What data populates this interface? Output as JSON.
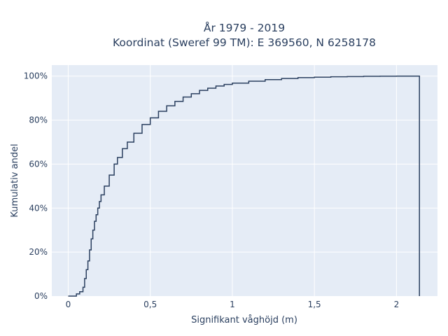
{
  "chart_data": {
    "type": "line",
    "line_shape": "step",
    "title": "År 1979 - 2019",
    "subtitle": "Koordinat (Sweref 99 TM): E 369560, N 6258178",
    "xlabel": "Signifikant våghöjd (m)",
    "ylabel": "Kumulativ andel",
    "xlim": [
      -0.1,
      2.25
    ],
    "ylim": [
      0,
      1.05
    ],
    "x_ticks": [
      0,
      0.5,
      1,
      1.5,
      2
    ],
    "x_tick_labels": [
      "0",
      "0,5",
      "1",
      "1,5",
      "2"
    ],
    "y_ticks": [
      0,
      0.2,
      0.4,
      0.6,
      0.8,
      1.0
    ],
    "y_tick_labels": [
      "0%",
      "20%",
      "40%",
      "60%",
      "80%",
      "100%"
    ],
    "grid": true,
    "legend": "none",
    "colors": {
      "line": "#2a3f5f",
      "plot_bg": "#e5ecf6",
      "grid": "#ffffff",
      "text": "#2a3f5f"
    },
    "series": [
      {
        "x": [
          0,
          0.05,
          0.07,
          0.09,
          0.1,
          0.11,
          0.12,
          0.13,
          0.14,
          0.15,
          0.16,
          0.17,
          0.18,
          0.19,
          0.2,
          0.22,
          0.25,
          0.28,
          0.3,
          0.33,
          0.36,
          0.4,
          0.45,
          0.5,
          0.55,
          0.6,
          0.65,
          0.7,
          0.75,
          0.8,
          0.85,
          0.9,
          0.95,
          1.0,
          1.1,
          1.2,
          1.3,
          1.4,
          1.5,
          1.6,
          1.7,
          1.8,
          1.9,
          2.0,
          2.14,
          2.14
        ],
        "y": [
          0,
          0.01,
          0.02,
          0.04,
          0.08,
          0.12,
          0.16,
          0.21,
          0.26,
          0.3,
          0.34,
          0.37,
          0.4,
          0.43,
          0.46,
          0.5,
          0.55,
          0.6,
          0.63,
          0.67,
          0.7,
          0.74,
          0.78,
          0.81,
          0.84,
          0.865,
          0.885,
          0.905,
          0.92,
          0.935,
          0.945,
          0.955,
          0.962,
          0.968,
          0.977,
          0.984,
          0.989,
          0.993,
          0.995,
          0.997,
          0.998,
          0.999,
          0.9995,
          1.0,
          1.0,
          0
        ]
      }
    ]
  }
}
